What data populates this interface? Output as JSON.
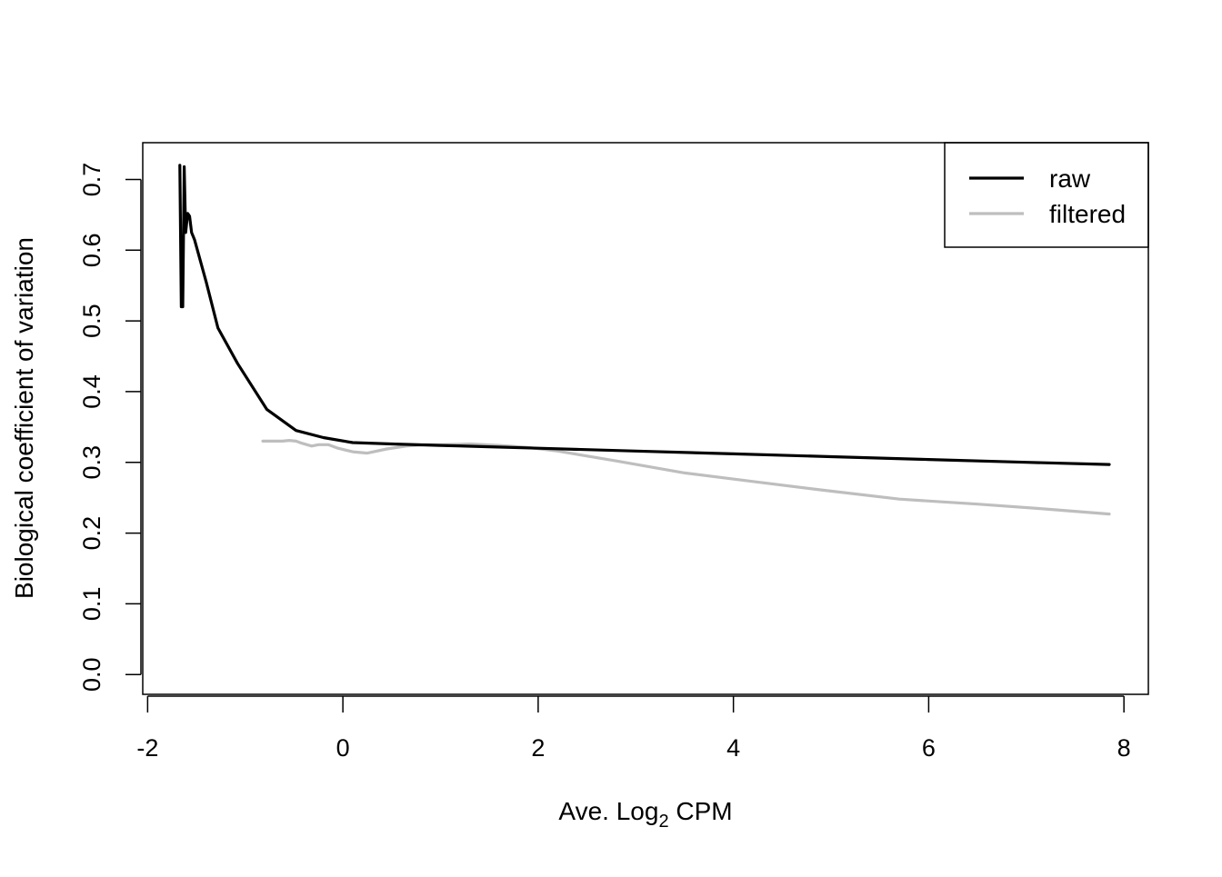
{
  "chart_data": {
    "type": "line",
    "title": "",
    "xlabel": "Ave. Log",
    "xlabel_subscript": "2",
    "xlabel_suffix": " CPM",
    "ylabel": "Biological coefficient of variation",
    "xlim": [
      -2.05,
      8.25
    ],
    "ylim": [
      -0.028,
      0.752
    ],
    "x_ticks": [
      -2,
      0,
      2,
      4,
      6,
      8
    ],
    "x_tick_labels": [
      "-2",
      "0",
      "2",
      "4",
      "6",
      "8"
    ],
    "y_ticks": [
      0.0,
      0.1,
      0.2,
      0.3,
      0.4,
      0.5,
      0.6,
      0.7
    ],
    "y_tick_labels": [
      "0.0",
      "0.1",
      "0.2",
      "0.3",
      "0.4",
      "0.5",
      "0.6",
      "0.7"
    ],
    "grid": false,
    "legend_position": "top-right",
    "series": [
      {
        "name": "raw",
        "color": "#000000",
        "x": [
          -1.67,
          -1.655,
          -1.64,
          -1.625,
          -1.61,
          -1.59,
          -1.57,
          -1.55,
          -1.52,
          -1.4,
          -1.28,
          -1.08,
          -0.78,
          -0.48,
          -0.2,
          0.1,
          0.5,
          1.0,
          1.5,
          2.0,
          3.0,
          4.0,
          5.0,
          6.0,
          7.0,
          7.85
        ],
        "y": [
          0.72,
          0.52,
          0.52,
          0.718,
          0.625,
          0.652,
          0.648,
          0.625,
          0.615,
          0.555,
          0.49,
          0.44,
          0.375,
          0.345,
          0.335,
          0.328,
          0.326,
          0.324,
          0.322,
          0.32,
          0.316,
          0.312,
          0.308,
          0.304,
          0.3,
          0.297
        ]
      },
      {
        "name": "filtered",
        "color": "#bebebe",
        "x": [
          -0.82,
          -0.72,
          -0.62,
          -0.55,
          -0.48,
          -0.42,
          -0.32,
          -0.25,
          -0.15,
          -0.05,
          0.1,
          0.25,
          0.45,
          0.65,
          0.85,
          1.0,
          1.3,
          1.6,
          1.9,
          2.2,
          2.8,
          3.5,
          4.2,
          4.9,
          5.7,
          6.5,
          7.2,
          7.85
        ],
        "y": [
          0.33,
          0.33,
          0.33,
          0.331,
          0.33,
          0.327,
          0.323,
          0.325,
          0.325,
          0.32,
          0.315,
          0.313,
          0.319,
          0.323,
          0.325,
          0.325,
          0.326,
          0.324,
          0.321,
          0.316,
          0.302,
          0.285,
          0.273,
          0.261,
          0.248,
          0.241,
          0.234,
          0.227
        ]
      }
    ]
  }
}
